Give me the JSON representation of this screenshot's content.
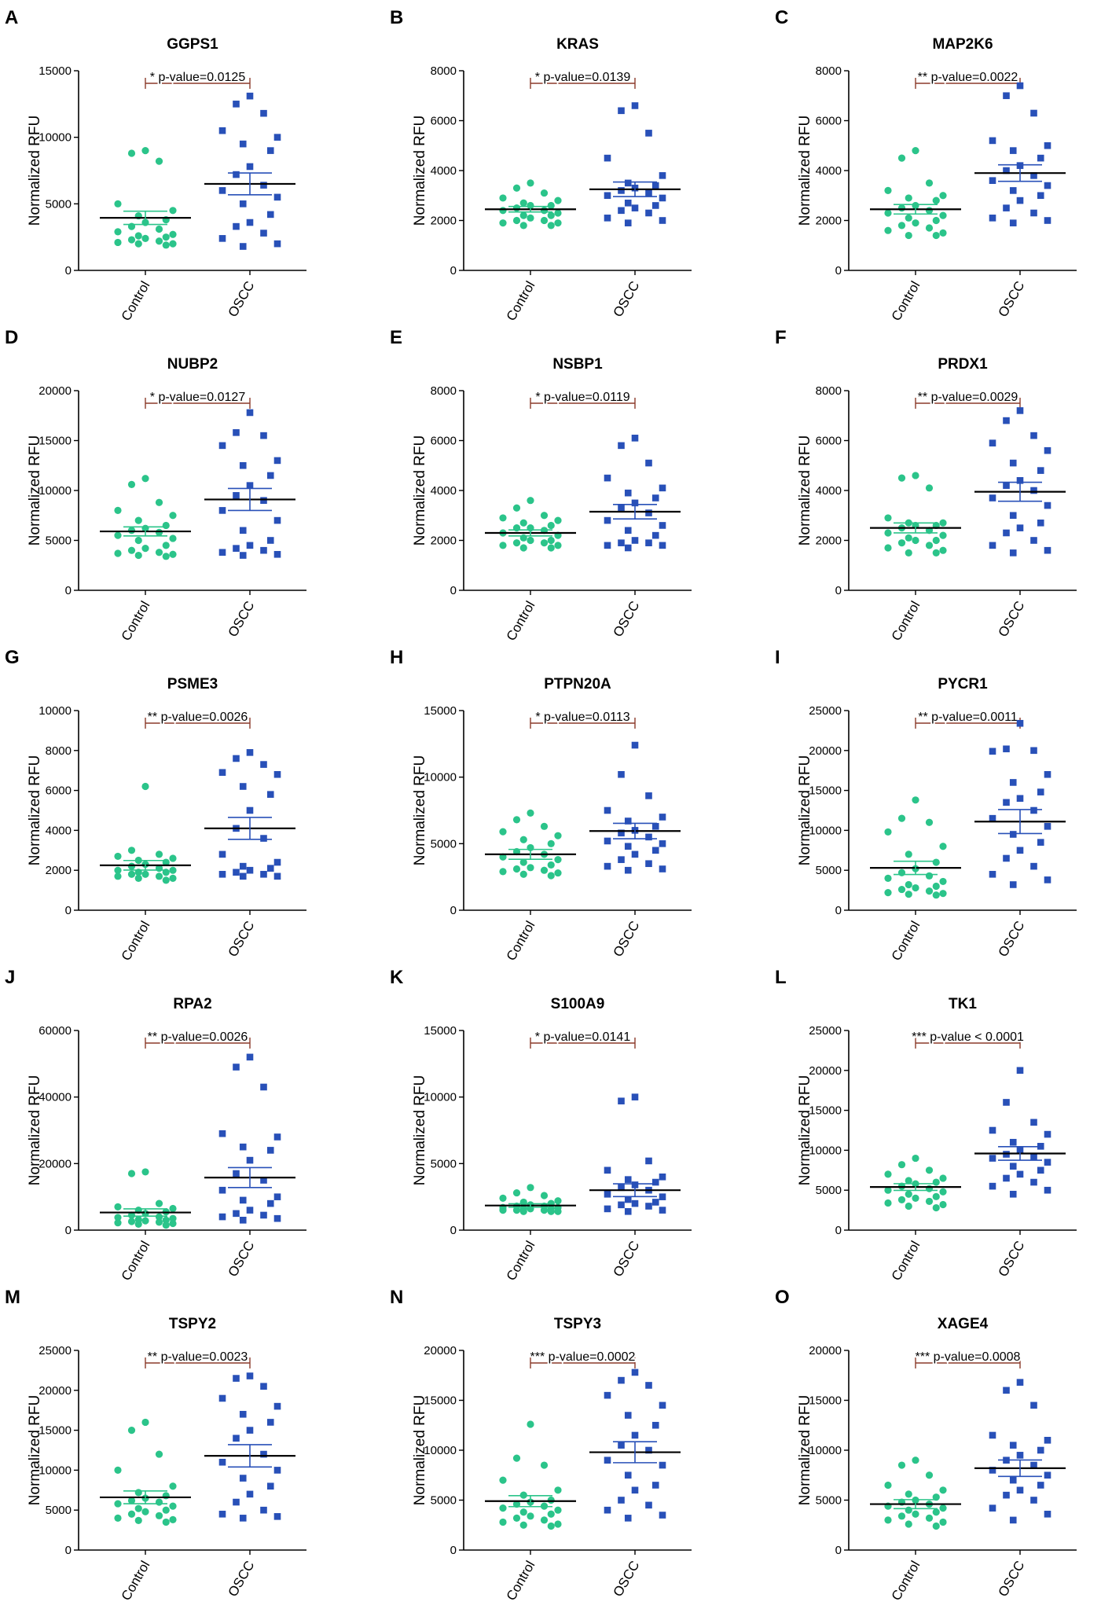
{
  "figure": {
    "x_categories": [
      "Control",
      "OSCC"
    ],
    "y_axis_label": "Normalized RFU",
    "colors": {
      "control": "#2bc48a",
      "oscc": "#2850b8",
      "bracket": "#8b3a2a",
      "axis": "#000000"
    }
  },
  "chart_data": [
    {
      "letter": "A",
      "type": "scatter",
      "title": "GGPS1",
      "ylabel": "Normalized RFU",
      "ylim": [
        0,
        15000
      ],
      "yticks": [
        0,
        5000,
        10000,
        15000
      ],
      "significance": "* p-value=0.0125",
      "control": {
        "mean": 3950,
        "sem": 500,
        "values": [
          9000,
          8800,
          8200,
          5000,
          4500,
          4100,
          3800,
          3600,
          3300,
          3100,
          2900,
          2700,
          2600,
          2500,
          2400,
          2300,
          2200,
          2100,
          2000,
          2000,
          1900
        ]
      },
      "oscc": {
        "mean": 6500,
        "sem": 820,
        "values": [
          13100,
          12500,
          11800,
          10500,
          10000,
          9500,
          9000,
          7800,
          7200,
          6400,
          6000,
          5500,
          5000,
          4200,
          3600,
          3300,
          2800,
          2400,
          2000,
          1800
        ]
      }
    },
    {
      "letter": "B",
      "type": "scatter",
      "title": "KRAS",
      "ylabel": "Normalized RFU",
      "ylim": [
        0,
        8000
      ],
      "yticks": [
        0,
        2000,
        4000,
        6000,
        8000
      ],
      "significance": "* p-value=0.0139",
      "control": {
        "mean": 2450,
        "sem": 110,
        "values": [
          3500,
          3300,
          3100,
          2900,
          2800,
          2700,
          2600,
          2500,
          2400,
          2300,
          2200,
          2200,
          2100,
          2000,
          2000,
          1900,
          1900,
          1800,
          1800,
          2600,
          2400
        ]
      },
      "oscc": {
        "mean": 3250,
        "sem": 290,
        "values": [
          6600,
          6400,
          5500,
          4500,
          3800,
          3500,
          3400,
          3300,
          3200,
          3100,
          3000,
          2900,
          2700,
          2600,
          2500,
          2400,
          2300,
          2100,
          2000,
          1900
        ]
      }
    },
    {
      "letter": "C",
      "type": "scatter",
      "title": "MAP2K6",
      "ylabel": "Normalized RFU",
      "ylim": [
        0,
        8000
      ],
      "yticks": [
        0,
        2000,
        4000,
        6000,
        8000
      ],
      "significance": "** p-value=0.0022",
      "control": {
        "mean": 2450,
        "sem": 190,
        "values": [
          4800,
          4500,
          3500,
          3200,
          3000,
          2900,
          2800,
          2600,
          2500,
          2400,
          2300,
          2200,
          2100,
          2000,
          1900,
          1800,
          1700,
          1600,
          1500,
          1400,
          1400
        ]
      },
      "oscc": {
        "mean": 3900,
        "sem": 330,
        "values": [
          7400,
          7000,
          6300,
          5200,
          5000,
          4800,
          4500,
          4200,
          4000,
          3800,
          3600,
          3400,
          3200,
          3000,
          2800,
          2500,
          2300,
          2100,
          2000,
          1900
        ]
      }
    },
    {
      "letter": "D",
      "type": "scatter",
      "title": "NUBP2",
      "ylabel": "Normalized RFU",
      "ylim": [
        0,
        20000
      ],
      "yticks": [
        0,
        5000,
        10000,
        15000,
        20000
      ],
      "significance": "* p-value=0.0127",
      "control": {
        "mean": 5900,
        "sem": 450,
        "values": [
          11200,
          10600,
          8800,
          8000,
          7500,
          7000,
          6500,
          6200,
          6000,
          5800,
          5500,
          5200,
          5000,
          4500,
          4200,
          4000,
          3800,
          3700,
          3600,
          3500,
          3400
        ]
      },
      "oscc": {
        "mean": 9100,
        "sem": 1100,
        "values": [
          17800,
          15800,
          15500,
          14500,
          13000,
          12500,
          11500,
          10500,
          9500,
          9000,
          8000,
          7000,
          6000,
          5000,
          4500,
          4200,
          4000,
          3800,
          3600,
          3500
        ]
      }
    },
    {
      "letter": "E",
      "type": "scatter",
      "title": "NSBP1",
      "ylabel": "Normalized RFU",
      "ylim": [
        0,
        8000
      ],
      "yticks": [
        0,
        2000,
        4000,
        6000,
        8000
      ],
      "significance": "* p-value=0.0119",
      "control": {
        "mean": 2300,
        "sem": 120,
        "values": [
          3600,
          3300,
          3000,
          2900,
          2800,
          2700,
          2600,
          2500,
          2400,
          2300,
          2200,
          2100,
          2000,
          2000,
          1900,
          1900,
          1800,
          1800,
          1700,
          1700,
          2500
        ]
      },
      "oscc": {
        "mean": 3150,
        "sem": 290,
        "values": [
          6100,
          5800,
          5100,
          4500,
          4100,
          3900,
          3700,
          3500,
          3300,
          3100,
          2800,
          2600,
          2400,
          2200,
          2000,
          1900,
          1900,
          1800,
          1800,
          1700
        ]
      }
    },
    {
      "letter": "F",
      "type": "scatter",
      "title": "PRDX1",
      "ylabel": "Normalized RFU",
      "ylim": [
        0,
        8000
      ],
      "yticks": [
        0,
        2000,
        4000,
        6000,
        8000
      ],
      "significance": "** p-value=0.0029",
      "control": {
        "mean": 2500,
        "sem": 200,
        "values": [
          4600,
          4500,
          4100,
          2900,
          2700,
          2700,
          2600,
          2500,
          2400,
          2300,
          2200,
          2100,
          2000,
          2000,
          1900,
          1800,
          1700,
          1600,
          1500,
          1500,
          2600
        ]
      },
      "oscc": {
        "mean": 3950,
        "sem": 380,
        "values": [
          7200,
          6800,
          6200,
          5900,
          5600,
          5100,
          4800,
          4400,
          4200,
          4000,
          3700,
          3400,
          3000,
          2700,
          2500,
          2300,
          2000,
          1800,
          1600,
          1500
        ]
      }
    },
    {
      "letter": "G",
      "type": "scatter",
      "title": "PSME3",
      "ylabel": "Normalized RFU",
      "ylim": [
        0,
        10000
      ],
      "yticks": [
        0,
        2000,
        4000,
        6000,
        8000,
        10000
      ],
      "significance": "** p-value=0.0026",
      "control": {
        "mean": 2250,
        "sem": 240,
        "values": [
          6200,
          3000,
          2800,
          2700,
          2600,
          2500,
          2400,
          2300,
          2200,
          2100,
          2000,
          2000,
          1900,
          1900,
          1800,
          1800,
          1700,
          1700,
          1600,
          1600,
          1500
        ]
      },
      "oscc": {
        "mean": 4100,
        "sem": 550,
        "values": [
          7900,
          7600,
          7300,
          6900,
          6800,
          6200,
          5800,
          5000,
          4100,
          3600,
          2800,
          2400,
          2200,
          2100,
          2000,
          1900,
          1800,
          1800,
          1700,
          1700
        ]
      }
    },
    {
      "letter": "H",
      "type": "scatter",
      "title": "PTPN20A",
      "ylabel": "Normalized RFU",
      "ylim": [
        0,
        15000
      ],
      "yticks": [
        0,
        5000,
        10000,
        15000
      ],
      "significance": "* p-value=0.0113",
      "control": {
        "mean": 4200,
        "sem": 370,
        "values": [
          7300,
          6800,
          6300,
          5900,
          5600,
          5300,
          5000,
          4700,
          4400,
          4200,
          4000,
          3800,
          3600,
          3400,
          3200,
          3100,
          3000,
          2900,
          2800,
          2700,
          2600
        ]
      },
      "oscc": {
        "mean": 5950,
        "sem": 580,
        "values": [
          12400,
          10200,
          8600,
          7500,
          7000,
          6700,
          6300,
          6000,
          5800,
          5500,
          5200,
          5000,
          4800,
          4500,
          4200,
          3800,
          3500,
          3300,
          3100,
          3000
        ]
      }
    },
    {
      "letter": "I",
      "type": "scatter",
      "title": "PYCR1",
      "ylabel": "Normalized RFU",
      "ylim": [
        0,
        25000
      ],
      "yticks": [
        0,
        5000,
        10000,
        15000,
        20000,
        25000
      ],
      "significance": "** p-value=0.0011",
      "control": {
        "mean": 5300,
        "sem": 830,
        "values": [
          13800,
          11500,
          11000,
          9800,
          8000,
          7000,
          6000,
          5200,
          4700,
          4300,
          4000,
          3600,
          3200,
          3000,
          2800,
          2600,
          2400,
          2200,
          2100,
          2000,
          1900
        ]
      },
      "oscc": {
        "mean": 11100,
        "sem": 1500,
        "values": [
          23400,
          20200,
          20000,
          19900,
          17000,
          16000,
          14800,
          14000,
          13500,
          12500,
          11500,
          10500,
          9500,
          8500,
          7500,
          6500,
          5500,
          4500,
          3800,
          3200
        ]
      }
    },
    {
      "letter": "J",
      "type": "scatter",
      "title": "RPA2",
      "ylabel": "Normalized RFU",
      "ylim": [
        0,
        60000
      ],
      "yticks": [
        0,
        20000,
        40000,
        60000
      ],
      "significance": "** p-value=0.0026",
      "control": {
        "mean": 5300,
        "sem": 1100,
        "values": [
          17500,
          17000,
          8000,
          7000,
          6500,
          6000,
          5500,
          5000,
          4500,
          4000,
          3800,
          3500,
          3200,
          3000,
          2800,
          2600,
          2400,
          2200,
          2000,
          1800,
          1500
        ]
      },
      "oscc": {
        "mean": 15800,
        "sem": 3000,
        "values": [
          52000,
          49000,
          43000,
          29000,
          28000,
          25000,
          24000,
          21000,
          17000,
          15000,
          12000,
          10000,
          9000,
          8000,
          6000,
          5000,
          4500,
          4000,
          3500,
          3000
        ]
      }
    },
    {
      "letter": "K",
      "type": "scatter",
      "title": "S100A9",
      "ylabel": "Normalized RFU",
      "ylim": [
        0,
        15000
      ],
      "yticks": [
        0,
        5000,
        10000,
        15000
      ],
      "significance": "* p-value=0.0141",
      "control": {
        "mean": 1850,
        "sem": 130,
        "values": [
          3200,
          2800,
          2600,
          2400,
          2200,
          2100,
          2000,
          1900,
          1800,
          1800,
          1700,
          1700,
          1600,
          1600,
          1600,
          1500,
          1500,
          1500,
          1400,
          1400,
          1400
        ]
      },
      "oscc": {
        "mean": 3000,
        "sem": 480,
        "values": [
          10000,
          9700,
          5200,
          4500,
          4000,
          3800,
          3600,
          3400,
          3200,
          3000,
          2700,
          2500,
          2300,
          2100,
          2000,
          1900,
          1800,
          1600,
          1500,
          1400
        ]
      }
    },
    {
      "letter": "L",
      "type": "scatter",
      "title": "TK1",
      "ylabel": "Normalized RFU",
      "ylim": [
        0,
        25000
      ],
      "yticks": [
        0,
        5000,
        10000,
        15000,
        20000,
        25000
      ],
      "significance": "*** p-value < 0.0001",
      "control": {
        "mean": 5400,
        "sem": 420,
        "values": [
          9000,
          8200,
          7500,
          7000,
          6500,
          6200,
          6000,
          5800,
          5500,
          5200,
          5000,
          4800,
          4500,
          4200,
          4000,
          3800,
          3600,
          3400,
          3200,
          3000,
          2800
        ]
      },
      "oscc": {
        "mean": 9600,
        "sem": 850,
        "values": [
          20000,
          16000,
          13500,
          12500,
          12000,
          11000,
          10500,
          10000,
          9500,
          9200,
          9000,
          8500,
          8000,
          7500,
          7000,
          6500,
          6000,
          5500,
          5000,
          4500
        ]
      }
    },
    {
      "letter": "M",
      "type": "scatter",
      "title": "TSPY2",
      "ylabel": "Normalized RFU",
      "ylim": [
        0,
        25000
      ],
      "yticks": [
        0,
        5000,
        10000,
        15000,
        20000,
        25000
      ],
      "significance": "** p-value=0.0023",
      "control": {
        "mean": 6600,
        "sem": 800,
        "values": [
          16000,
          15000,
          12000,
          10000,
          8000,
          7200,
          6800,
          6500,
          6200,
          6000,
          5800,
          5500,
          5200,
          5000,
          4800,
          4500,
          4300,
          4000,
          3800,
          3700,
          3500
        ]
      },
      "oscc": {
        "mean": 11800,
        "sem": 1400,
        "values": [
          21800,
          21500,
          20500,
          19000,
          18000,
          17000,
          16000,
          15000,
          14000,
          12000,
          11000,
          10000,
          9000,
          8000,
          7000,
          6000,
          5000,
          4500,
          4200,
          4000
        ]
      }
    },
    {
      "letter": "N",
      "type": "scatter",
      "title": "TSPY3",
      "ylabel": "Normalized RFU",
      "ylim": [
        0,
        20000
      ],
      "yticks": [
        0,
        5000,
        10000,
        15000,
        20000
      ],
      "significance": "*** p-value=0.0002",
      "control": {
        "mean": 4900,
        "sem": 550,
        "values": [
          12600,
          9200,
          8500,
          7000,
          6000,
          5500,
          5000,
          4800,
          4600,
          4400,
          4200,
          4000,
          3800,
          3600,
          3400,
          3200,
          3000,
          2800,
          2600,
          2500,
          2400
        ]
      },
      "oscc": {
        "mean": 9800,
        "sem": 1050,
        "values": [
          17800,
          17000,
          16500,
          15500,
          14500,
          13500,
          12500,
          11500,
          10500,
          10000,
          9000,
          8500,
          7500,
          6500,
          6000,
          5000,
          4500,
          4000,
          3500,
          3200
        ]
      }
    },
    {
      "letter": "O",
      "type": "scatter",
      "title": "XAGE4",
      "ylabel": "Normalized RFU",
      "ylim": [
        0,
        20000
      ],
      "yticks": [
        0,
        5000,
        10000,
        15000,
        20000
      ],
      "significance": "*** p-value=0.0008",
      "control": {
        "mean": 4600,
        "sem": 450,
        "values": [
          9000,
          8500,
          7500,
          6500,
          6000,
          5600,
          5300,
          5000,
          4800,
          4600,
          4400,
          4200,
          4000,
          3800,
          3600,
          3400,
          3200,
          3000,
          2800,
          2600,
          2400
        ]
      },
      "oscc": {
        "mean": 8200,
        "sem": 820,
        "values": [
          16800,
          16000,
          14500,
          11500,
          11000,
          10500,
          10000,
          9500,
          9000,
          8500,
          8000,
          7500,
          7000,
          6500,
          6000,
          5500,
          5000,
          4200,
          3600,
          3000
        ]
      }
    }
  ]
}
